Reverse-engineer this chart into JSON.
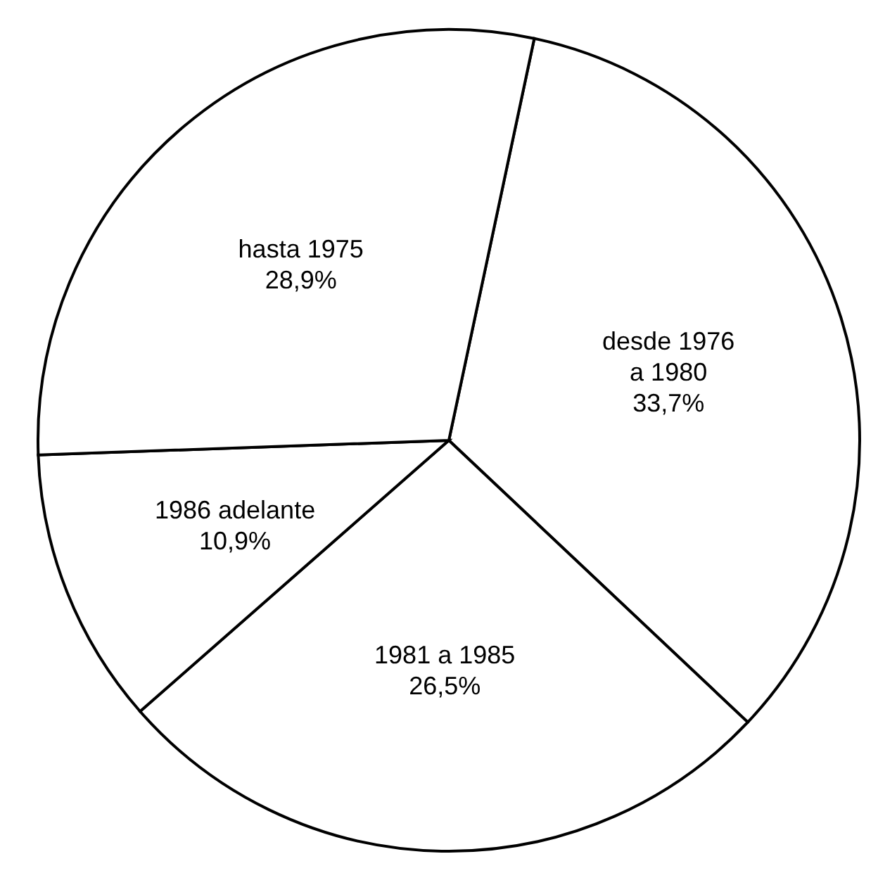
{
  "chart_data": {
    "type": "pie",
    "categories": [
      "desde 1976 a 1980",
      "1981 a 1985",
      "1986 adelante",
      "hasta 1975"
    ],
    "values": [
      33.7,
      26.5,
      10.9,
      28.9
    ],
    "value_labels": [
      "33,7%",
      "26,5%",
      "10,9%",
      "28,9%"
    ],
    "colors": [
      "#ffffff",
      "#ffffff",
      "#ffffff",
      "#ffffff"
    ]
  }
}
